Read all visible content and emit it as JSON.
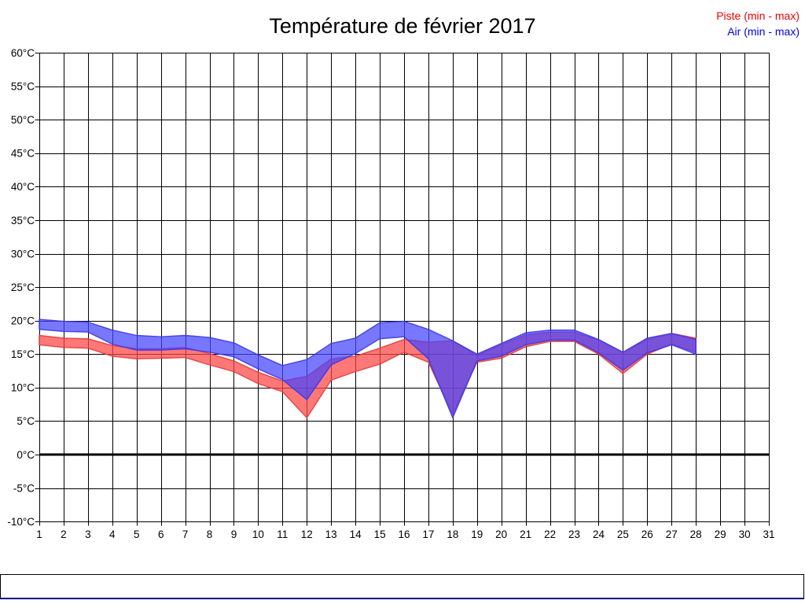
{
  "title": "Température de février 2017",
  "legend": [
    {
      "label": "Piste (min - max)",
      "color": "#ee0000"
    },
    {
      "label": "Air (min - max)",
      "color": "#0000ee"
    }
  ],
  "chart_data": {
    "type": "area",
    "title": "Température de février 2017",
    "xlabel": "",
    "ylabel": "",
    "y_unit": "°C",
    "xlim": [
      1,
      31
    ],
    "ylim": [
      -10,
      60
    ],
    "grid": true,
    "legend_position": "top-right",
    "x_ticks": [
      1,
      2,
      3,
      4,
      5,
      6,
      7,
      8,
      9,
      10,
      11,
      12,
      13,
      14,
      15,
      16,
      17,
      18,
      19,
      20,
      21,
      22,
      23,
      24,
      25,
      26,
      27,
      28,
      29,
      30,
      31
    ],
    "y_tick_values": [
      60,
      55,
      50,
      45,
      40,
      35,
      30,
      25,
      20,
      15,
      10,
      5,
      0,
      -5,
      -10
    ],
    "y_tick_labels": [
      "60°C",
      "55°C",
      "50°C",
      "45°C",
      "40°C",
      "35°C",
      "30°C",
      "25°C",
      "20°C",
      "15°C",
      "10°C",
      "5°C",
      "0°C",
      "-5°C",
      "-10°C"
    ],
    "zero_line_value": 0,
    "days": [
      1,
      2,
      3,
      4,
      5,
      6,
      7,
      8,
      9,
      10,
      11,
      12,
      13,
      14,
      15,
      16,
      17,
      18,
      19,
      20,
      21,
      22,
      23,
      24,
      25,
      26,
      27,
      28
    ],
    "series": [
      {
        "name": "Piste (min - max)",
        "fill": "#ff4444",
        "edge": "#e63939",
        "min": [
          16.4,
          16.0,
          15.9,
          14.7,
          14.3,
          14.4,
          14.5,
          13.4,
          12.4,
          10.6,
          9.4,
          5.5,
          11.1,
          12.4,
          13.5,
          15.3,
          13.8,
          6.0,
          13.8,
          14.4,
          16.1,
          16.9,
          16.9,
          15.0,
          12.1,
          15.0,
          16.5,
          15.3
        ],
        "max": [
          17.8,
          17.4,
          17.3,
          16.3,
          15.8,
          15.8,
          16.0,
          15.1,
          14.0,
          12.3,
          11.0,
          11.7,
          14.3,
          14.7,
          15.9,
          17.2,
          16.8,
          17.0,
          14.8,
          16.4,
          17.9,
          18.3,
          18.3,
          17.1,
          15.2,
          17.2,
          18.1,
          17.4
        ]
      },
      {
        "name": "Air (min - max)",
        "fill": "#4444ff",
        "edge": "#3939e6",
        "min": [
          18.7,
          18.4,
          18.3,
          16.5,
          15.6,
          15.6,
          15.8,
          15.3,
          14.6,
          12.8,
          11.2,
          8.2,
          13.4,
          15.1,
          17.3,
          17.6,
          14.3,
          5.5,
          14.0,
          14.7,
          16.4,
          17.1,
          17.1,
          15.2,
          12.6,
          15.2,
          16.4,
          15.0
        ],
        "max": [
          20.2,
          19.9,
          19.8,
          18.6,
          17.8,
          17.6,
          17.8,
          17.5,
          16.7,
          14.9,
          13.3,
          14.2,
          16.6,
          17.4,
          19.7,
          19.9,
          18.7,
          17.0,
          15.0,
          16.6,
          18.2,
          18.6,
          18.6,
          17.2,
          15.3,
          17.4,
          18.1,
          17.2
        ]
      }
    ]
  }
}
